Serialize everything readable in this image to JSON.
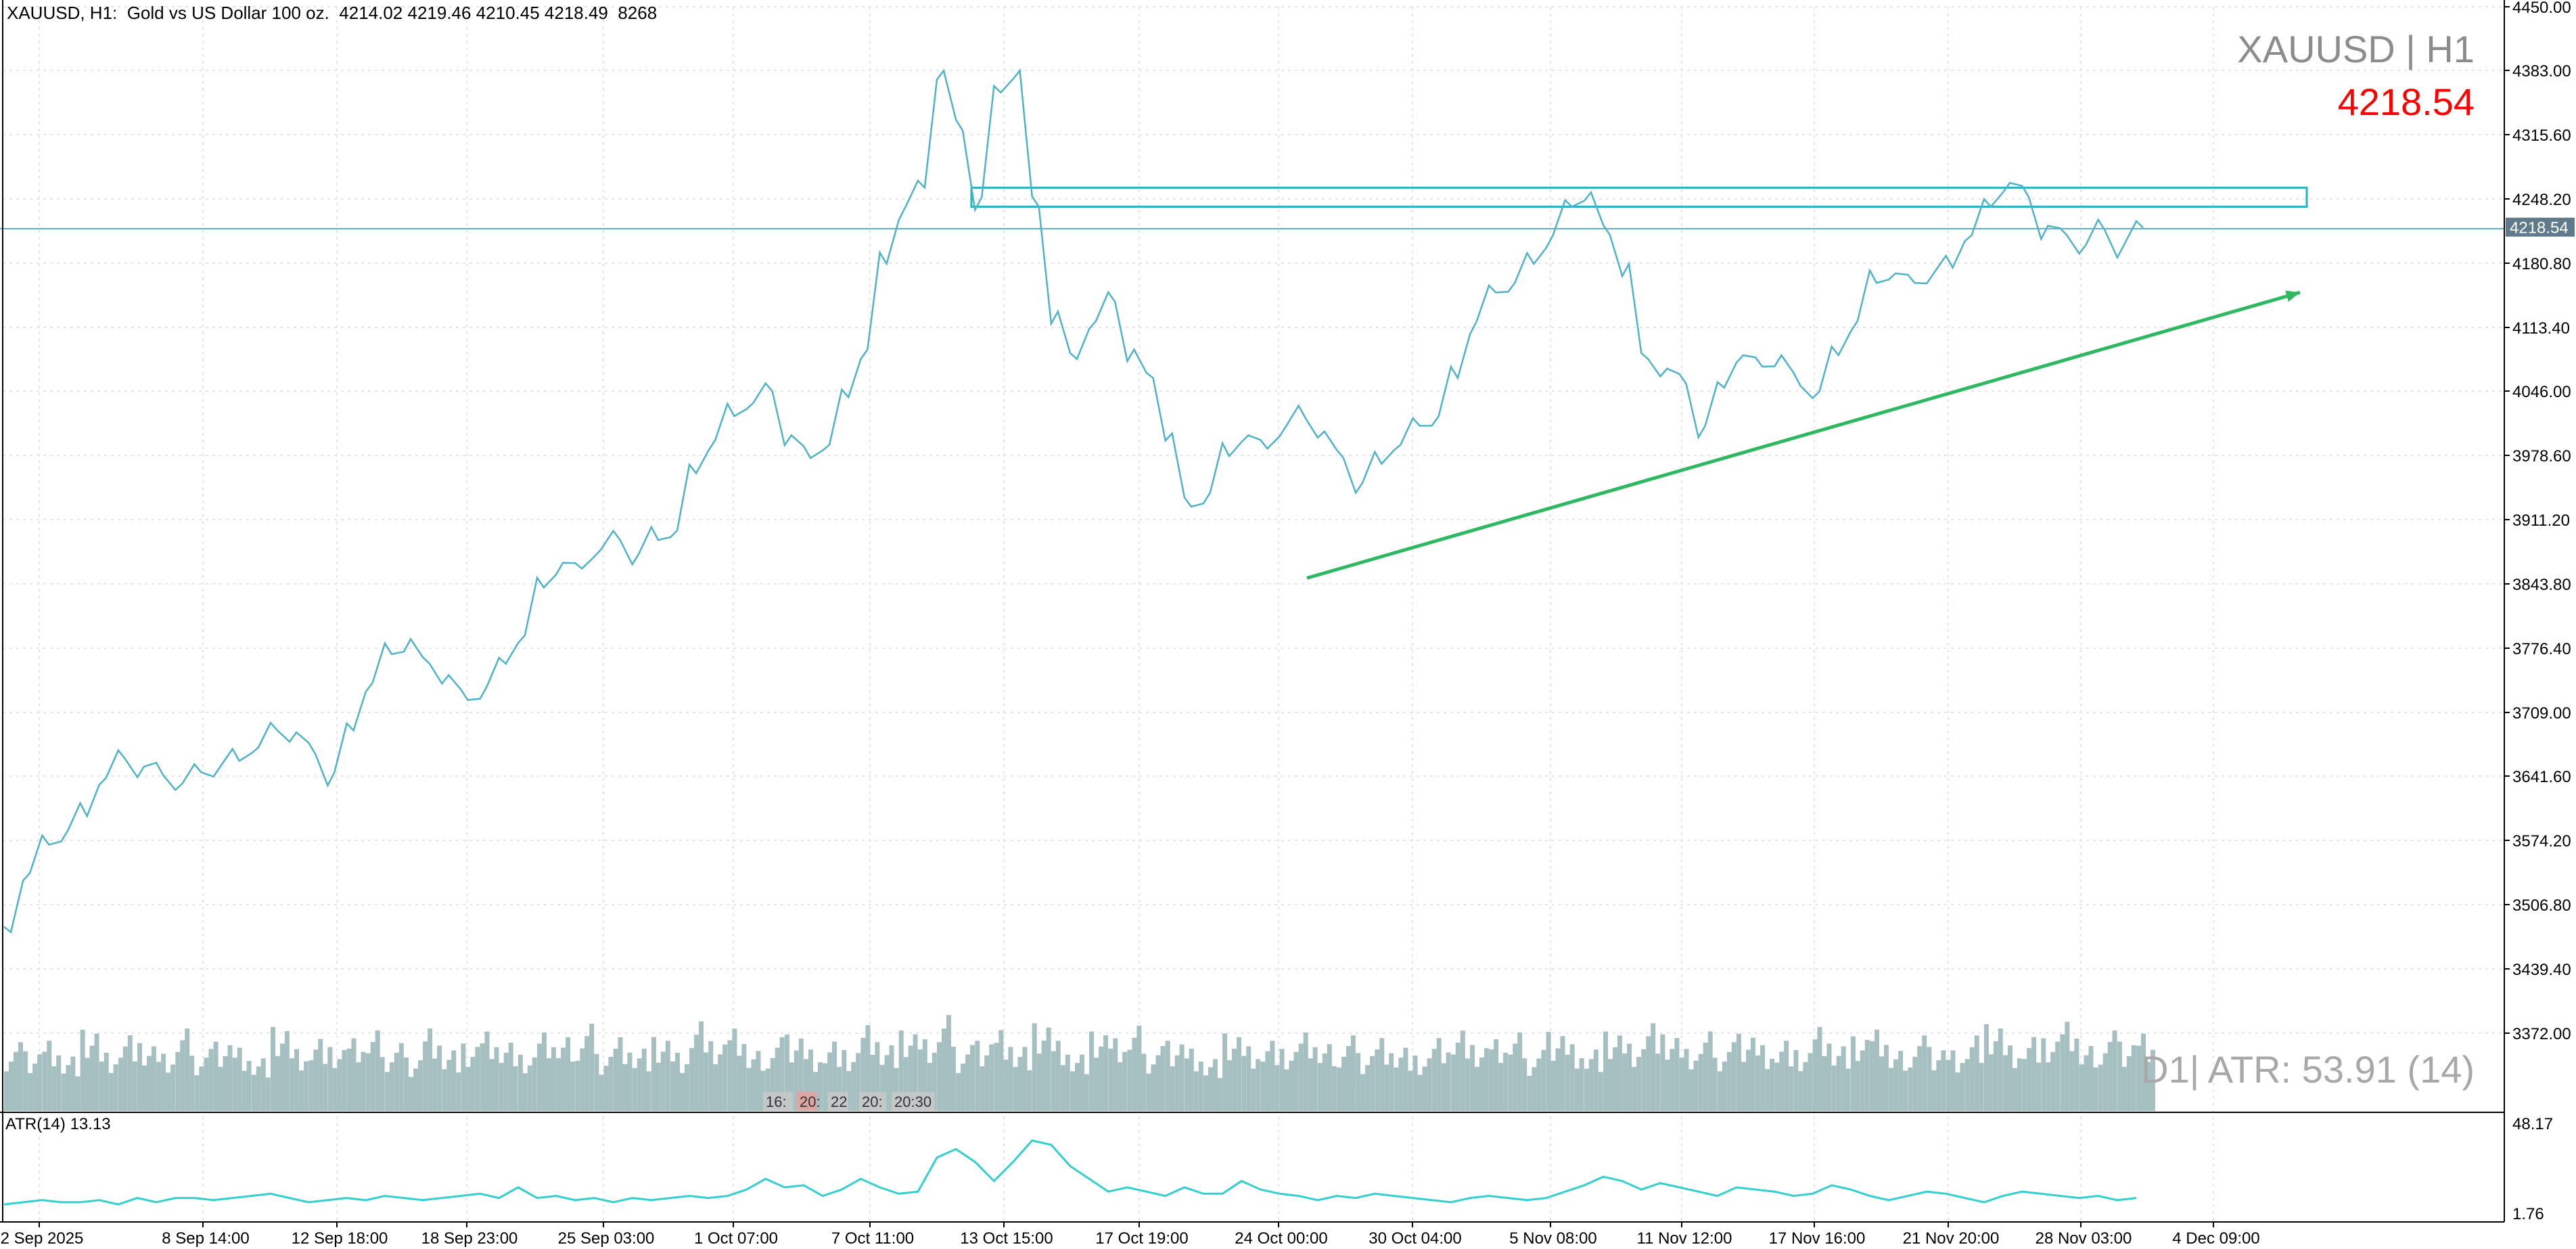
{
  "header": {
    "ohlc_line": "XAUUSD, H1:  Gold vs US Dollar 100 oz.  4214.02 4219.46 4210.45 4218.49  8268",
    "symbol_title": "XAUUSD | H1",
    "current_price": "4218.54",
    "price_tag": "4218.54"
  },
  "indicator": {
    "atr_label": "ATR(14) 13.13",
    "atr_daily": "D1| ATR: 53.91 (14)",
    "atr_axis_max": "48.17",
    "atr_axis_min": "1.76"
  },
  "axis_markers": [
    "16:",
    "20:",
    "22",
    "20:",
    "20:30"
  ],
  "colors": {
    "price_line": "#4db3c9",
    "volume": "#a6bfc0",
    "atr_line": "#33d0d0",
    "zone": "#22b5c0",
    "trendline": "#2eb860",
    "price_tag_bg": "#5f7a8a",
    "current_price_line": "#5fb0c8"
  },
  "chart_data": {
    "type": "line",
    "title": "XAUUSD | H1",
    "ylim": [
      3305,
      4450
    ],
    "y_ticks": [
      "4450.00",
      "4383.00",
      "4315.60",
      "4248.20",
      "4180.80",
      "4113.40",
      "4046.00",
      "3978.60",
      "3911.20",
      "3843.80",
      "3776.40",
      "3709.00",
      "3641.60",
      "3574.20",
      "3506.80",
      "3439.40",
      "3372.00"
    ],
    "x_ticks": [
      "2 Sep 2025",
      "8 Sep 14:00",
      "12 Sep 18:00",
      "18 Sep 23:00",
      "25 Sep 03:00",
      "1 Oct 07:00",
      "7 Oct 11:00",
      "13 Oct 15:00",
      "17 Oct 19:00",
      "24 Oct 00:00",
      "30 Oct 04:00",
      "5 Nov 08:00",
      "11 Nov 12:00",
      "17 Nov 16:00",
      "21 Nov 20:00",
      "28 Nov 03:00",
      "4 Dec 09:00"
    ],
    "series": [
      {
        "values": [
          3478,
          3540,
          3570,
          3585,
          3600,
          3640,
          3660,
          3652,
          3643,
          3634,
          3646,
          3652,
          3658,
          3672,
          3690,
          3688,
          3665,
          3646,
          3690,
          3740,
          3770,
          3786,
          3760,
          3748,
          3722,
          3736,
          3760,
          3790,
          3840,
          3866,
          3860,
          3880,
          3890,
          3876,
          3890,
          3900,
          3960,
          3995,
          4020,
          4034,
          4046,
          4000,
          3976,
          3990,
          4040,
          4090,
          4180,
          4240,
          4260,
          4383,
          4320,
          4250,
          4360,
          4383,
          4240,
          4130,
          4080,
          4120,
          4140,
          4090,
          4060,
          4002,
          3925,
          3940,
          3978,
          4000,
          3986,
          4010,
          4018,
          4004,
          3976,
          3950,
          3970,
          3990,
          4010,
          4020,
          4060,
          4120,
          4150,
          4160,
          4180,
          4210,
          4240,
          4255,
          4210,
          4180,
          4080,
          4070,
          4054,
          4010,
          4050,
          4084,
          4072,
          4084,
          4052,
          4046,
          4084,
          4120,
          4160,
          4170,
          4160,
          4170,
          4176,
          4210,
          4240,
          4265,
          4250,
          4220,
          4210,
          4200,
          4215,
          4200,
          4218
        ]
      }
    ],
    "volume": [
      0.71,
      0.68,
      0.8,
      0.62,
      0.88,
      0.63,
      0.82,
      0.7,
      0.59,
      0.85,
      0.64,
      0.79,
      0.72,
      0.6,
      0.91,
      0.67,
      0.78,
      0.66,
      0.75,
      0.83,
      0.7,
      0.61,
      0.94,
      0.69,
      0.73,
      0.86,
      0.74,
      0.58,
      0.81,
      0.76,
      0.9,
      0.65,
      0.84,
      0.71,
      0.8,
      0.63,
      0.97,
      0.72,
      0.85,
      0.62,
      0.76,
      0.87,
      0.7,
      0.79,
      0.66,
      0.93,
      0.71,
      0.83,
      0.74,
      0.99,
      0.68,
      0.8,
      0.92,
      0.73,
      0.95,
      0.76,
      0.61,
      0.82,
      0.75,
      0.88,
      0.67,
      0.8,
      0.71,
      0.59,
      0.84,
      0.7,
      0.76,
      0.64,
      0.81,
      0.69,
      0.78,
      0.66,
      0.83,
      0.72,
      0.6,
      0.79,
      0.87,
      0.68,
      0.74,
      0.81,
      0.63,
      0.9,
      0.76,
      0.7,
      0.86,
      0.73,
      0.95,
      0.79,
      0.64,
      0.82,
      0.71,
      0.88,
      0.75,
      0.8,
      0.66,
      0.91,
      0.7,
      0.77,
      0.84,
      0.62,
      0.78,
      0.73,
      0.69,
      0.86,
      0.94,
      0.71,
      0.8,
      0.75,
      0.92,
      0.67,
      0.83,
      0.79,
      0.88
    ],
    "atr": [
      10,
      11,
      12,
      11,
      11,
      12,
      10,
      13,
      11,
      13,
      13,
      12,
      13,
      14,
      15,
      13,
      11,
      12,
      13,
      12,
      14,
      13,
      12,
      13,
      14,
      15,
      13,
      18,
      13,
      14,
      12,
      13,
      11,
      13,
      12,
      13,
      14,
      13,
      14,
      17,
      22,
      18,
      19,
      14,
      17,
      22,
      18,
      15,
      16,
      32,
      36,
      30,
      21,
      30,
      40,
      38,
      28,
      22,
      16,
      18,
      16,
      14,
      18,
      15,
      15,
      21,
      17,
      15,
      14,
      12,
      14,
      13,
      15,
      14,
      13,
      12,
      11,
      13,
      14,
      13,
      12,
      13,
      16,
      19,
      23,
      21,
      17,
      20,
      18,
      16,
      14,
      18,
      17,
      16,
      14,
      15,
      19,
      17,
      14,
      12,
      14,
      16,
      15,
      13,
      11,
      14,
      16,
      15,
      14,
      13,
      14,
      12,
      13
    ],
    "atr_ylim": [
      1.76,
      48.17
    ],
    "resistance_zone": [
      4240,
      4260
    ],
    "current_price_level": 4218.54,
    "trendline": {
      "start": 3850,
      "end": 4150
    }
  }
}
